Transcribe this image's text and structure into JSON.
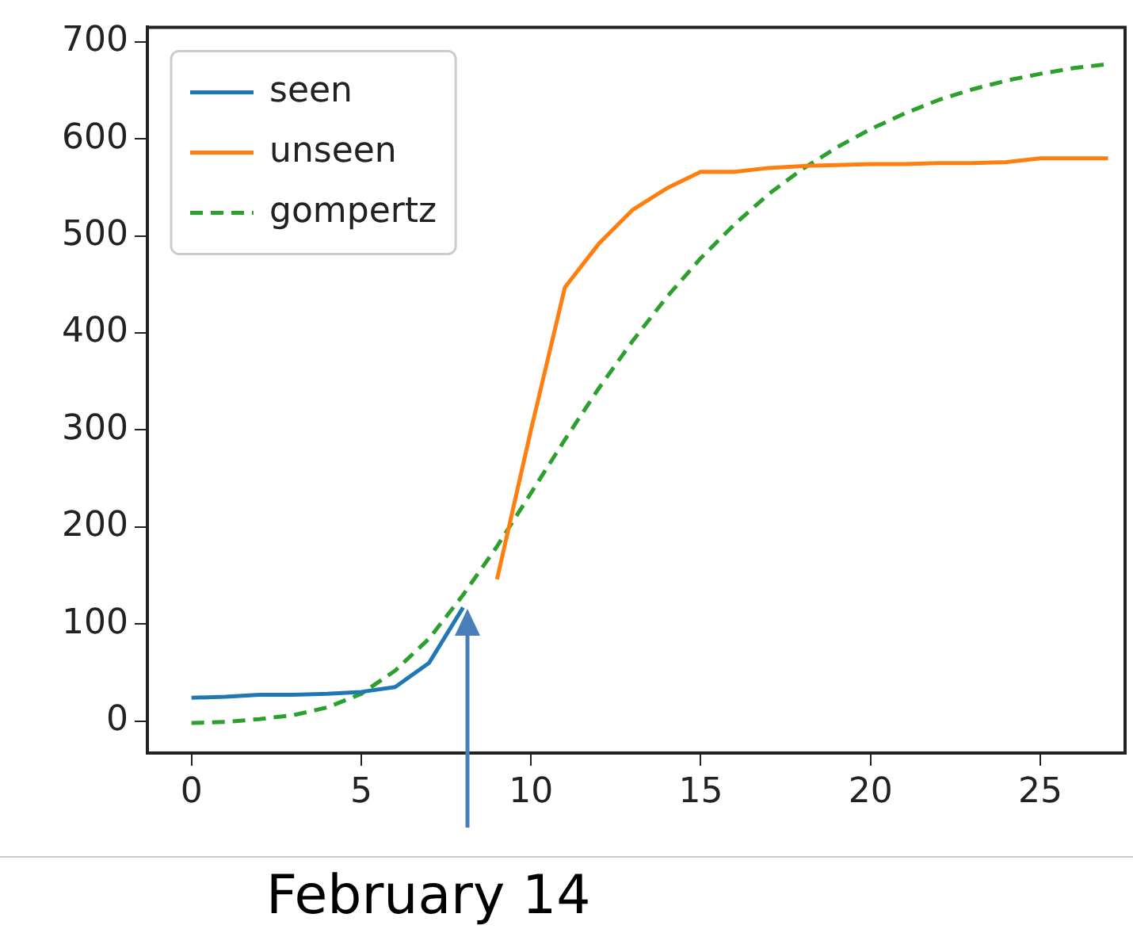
{
  "chart_data": {
    "type": "line",
    "xlim": [
      -1.3,
      27.5
    ],
    "xticks": [
      0,
      5,
      10,
      15,
      20,
      25
    ],
    "ylim": [
      -33,
      715
    ],
    "yticks": [
      0,
      100,
      200,
      300,
      400,
      500,
      600,
      700
    ],
    "grid": false,
    "legend": "top left",
    "marker": "none",
    "series": [
      {
        "name": "seen",
        "color": "#1f77b4",
        "x": [
          0,
          1,
          2,
          3,
          4,
          5,
          6,
          7,
          8
        ],
        "values": [
          24,
          25,
          27,
          27,
          28,
          30,
          35,
          60,
          117
        ]
      },
      {
        "name": "unseen",
        "color": "#ff7f0e",
        "x": [
          9,
          10,
          11,
          12,
          13,
          14,
          15,
          16,
          17,
          18,
          19,
          20,
          21,
          22,
          23,
          24,
          25,
          26,
          27
        ],
        "values": [
          146,
          300,
          447,
          492,
          527,
          549,
          566,
          566,
          570,
          572,
          573,
          574,
          574,
          575,
          575,
          576,
          580,
          580,
          580
        ]
      },
      {
        "name": "gompertz",
        "color": "#2ca02c",
        "line_style": "dashed",
        "x": [
          0,
          1,
          2,
          3,
          4,
          5,
          6,
          7,
          8,
          9,
          10,
          11,
          12,
          13,
          14,
          15,
          16,
          17,
          18,
          19,
          20,
          21,
          22,
          23,
          24,
          25,
          26,
          27
        ],
        "values": [
          -2,
          -1,
          2,
          6,
          14,
          28,
          52,
          85,
          130,
          180,
          235,
          290,
          343,
          392,
          437,
          477,
          512,
          543,
          569,
          591,
          610,
          626,
          640,
          651,
          660,
          667,
          673,
          677
        ]
      }
    ],
    "annotations": [
      "February 14"
    ]
  }
}
